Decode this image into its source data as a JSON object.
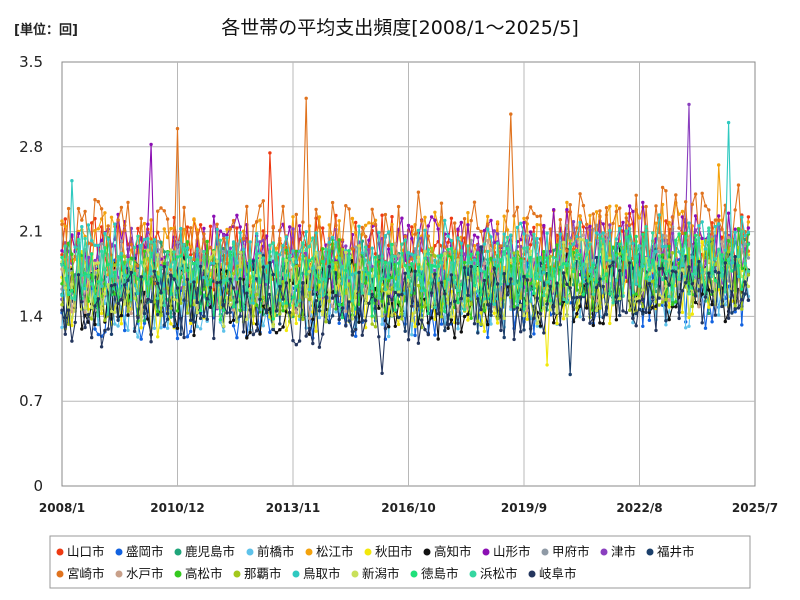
{
  "unit_label": "[単位：回]",
  "chart_data": {
    "type": "line",
    "title": "各世帯の平均支出頻度[2008/1～2025/5]",
    "xlabel": "",
    "ylabel": "",
    "ylim": [
      0,
      3.5
    ],
    "xlim": [
      "2008/1",
      "2025/7"
    ],
    "yticks": [
      "0",
      "0.7",
      "1.4",
      "2.1",
      "2.8",
      "3.5"
    ],
    "xticks": [
      "2008/1",
      "2010/12",
      "2013/11",
      "2016/10",
      "2019/9",
      "2022/8",
      "2025/7"
    ],
    "grid": true,
    "legend_position": "bottom",
    "frequency": "monthly",
    "series": [
      {
        "name": "山口市",
        "color": "#ee3a12",
        "base": 1.9,
        "amp": 0.3,
        "seed": 1,
        "spikes": [
          {
            "x": "2013/4",
            "y": 2.75
          }
        ]
      },
      {
        "name": "盛岡市",
        "color": "#1262e0",
        "base": 1.55,
        "amp": 0.32,
        "seed": 2,
        "spikes": []
      },
      {
        "name": "鹿児島市",
        "color": "#1fa57a",
        "base": 1.7,
        "amp": 0.3,
        "seed": 3,
        "spikes": []
      },
      {
        "name": "前橋市",
        "color": "#5ec2ea",
        "base": 1.55,
        "amp": 0.3,
        "seed": 4,
        "spikes": []
      },
      {
        "name": "松江市",
        "color": "#f3a20d",
        "base": 1.95,
        "amp": 0.3,
        "seed": 5,
        "spikes": [
          {
            "x": "2024/8",
            "y": 2.65
          }
        ]
      },
      {
        "name": "秋田市",
        "color": "#f2e80a",
        "base": 1.6,
        "amp": 0.32,
        "seed": 6,
        "spikes": [
          {
            "x": "2020/4",
            "y": 1.0
          }
        ]
      },
      {
        "name": "高知市",
        "color": "#111111",
        "base": 1.55,
        "amp": 0.3,
        "seed": 7,
        "spikes": []
      },
      {
        "name": "山形市",
        "color": "#8b0fb3",
        "base": 1.95,
        "amp": 0.28,
        "seed": 8,
        "spikes": [
          {
            "x": "2010/4",
            "y": 2.82
          }
        ]
      },
      {
        "name": "甲府市",
        "color": "#8f9aa6",
        "base": 1.75,
        "amp": 0.28,
        "seed": 9,
        "spikes": []
      },
      {
        "name": "津市",
        "color": "#8a3fbf",
        "base": 1.8,
        "amp": 0.3,
        "seed": 10,
        "spikes": [
          {
            "x": "2023/11",
            "y": 3.15
          }
        ]
      },
      {
        "name": "福井市",
        "color": "#1b3f6b",
        "base": 1.6,
        "amp": 0.32,
        "seed": 11,
        "spikes": [
          {
            "x": "2020/11",
            "y": 0.92
          }
        ]
      },
      {
        "name": "宮崎市",
        "color": "#e0731e",
        "base": 2.05,
        "amp": 0.33,
        "seed": 12,
        "spikes": [
          {
            "x": "2010/12",
            "y": 2.95
          },
          {
            "x": "2014/3",
            "y": 3.2
          },
          {
            "x": "2019/5",
            "y": 3.07
          }
        ]
      },
      {
        "name": "水戸市",
        "color": "#c8a08a",
        "base": 1.7,
        "amp": 0.28,
        "seed": 13,
        "spikes": []
      },
      {
        "name": "高松市",
        "color": "#34c91f",
        "base": 1.7,
        "amp": 0.3,
        "seed": 14,
        "spikes": []
      },
      {
        "name": "那覇市",
        "color": "#a3c81c",
        "base": 1.65,
        "amp": 0.3,
        "seed": 15,
        "spikes": []
      },
      {
        "name": "鳥取市",
        "color": "#2fc9c0",
        "base": 1.85,
        "amp": 0.3,
        "seed": 16,
        "spikes": [
          {
            "x": "2008/4",
            "y": 2.52
          },
          {
            "x": "2024/11",
            "y": 3.0
          }
        ]
      },
      {
        "name": "新潟市",
        "color": "#c9e05a",
        "base": 1.65,
        "amp": 0.3,
        "seed": 17,
        "spikes": []
      },
      {
        "name": "徳島市",
        "color": "#1ee07a",
        "base": 1.7,
        "amp": 0.28,
        "seed": 18,
        "spikes": []
      },
      {
        "name": "浜松市",
        "color": "#35d6a0",
        "base": 1.75,
        "amp": 0.3,
        "seed": 19,
        "spikes": []
      },
      {
        "name": "岐阜市",
        "color": "#24365e",
        "base": 1.5,
        "amp": 0.3,
        "seed": 20,
        "spikes": [
          {
            "x": "2016/2",
            "y": 0.93
          }
        ]
      }
    ]
  }
}
